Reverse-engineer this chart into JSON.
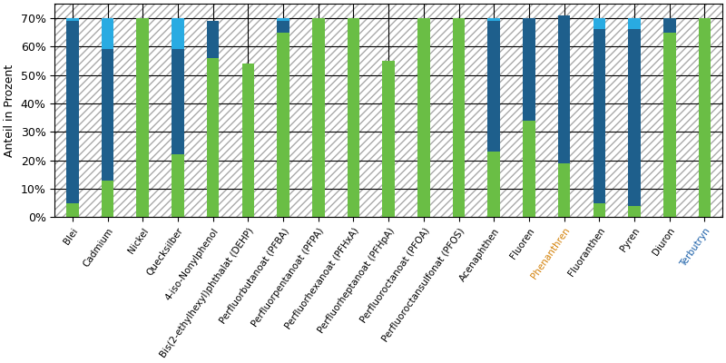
{
  "categories": [
    "Blei",
    "Cadmium",
    "Nickel",
    "Quecksilber",
    "4-iso-Nonylphenol",
    "Bis(2-ethylhexyl)phthalat (DEHP)",
    "Perfluorbutanoat (PFBA)",
    "Perfluorpentanoat (PFPA)",
    "Perfluorhexanoat (PFHxA)",
    "Perfluorheptanoat (PFHpA)",
    "Perfluoroctanoat (PFOA)",
    "Perfluoroctansulfonat (PFOS)",
    "Acenaphthen",
    "Fluoren",
    "Phenanthren",
    "Fluoranthen",
    "Pyren",
    "Diuron",
    "Terbutryn"
  ],
  "green": [
    5,
    13,
    70,
    22,
    56,
    54,
    65,
    70,
    70,
    55,
    70,
    70,
    23,
    34,
    19,
    5,
    4,
    65,
    70
  ],
  "dark_blue": [
    64,
    46,
    0,
    37,
    13,
    0,
    4,
    0,
    0,
    0,
    0,
    0,
    46,
    36,
    52,
    61,
    62,
    5,
    0
  ],
  "cyan": [
    1,
    11,
    0,
    11,
    0,
    0,
    1,
    0,
    0,
    0,
    0,
    0,
    1,
    0,
    0,
    4,
    4,
    0,
    0
  ],
  "color_green": "#6abe45",
  "color_dark_blue": "#1e5f8c",
  "color_cyan": "#29abe2",
  "ylabel": "Anteil in Prozent",
  "yticks": [
    0,
    10,
    20,
    30,
    40,
    50,
    60,
    70
  ],
  "ytick_labels": [
    "0%",
    "10%",
    "20%",
    "30%",
    "40%",
    "50%",
    "60%",
    "70%"
  ],
  "orange_labels": [
    "Phenanthren"
  ],
  "blue_labels": [
    "Terbutryn"
  ],
  "bar_width": 0.35,
  "ylim": 75,
  "figsize": [
    8.0,
    4.0
  ],
  "dpi": 100
}
